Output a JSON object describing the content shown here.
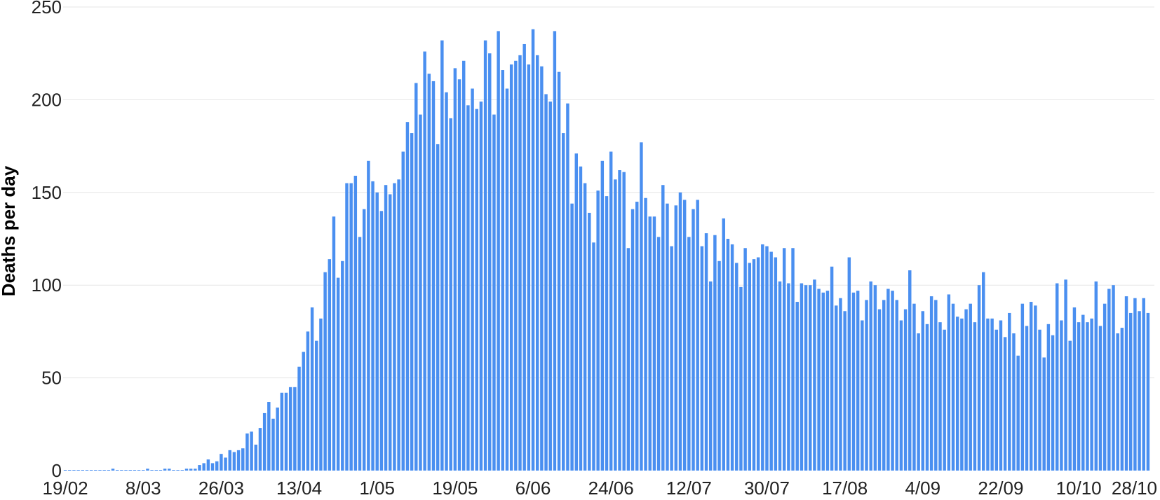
{
  "chart_data": {
    "type": "bar",
    "title": "",
    "xlabel": "",
    "ylabel": "Deaths per day",
    "ylim": [
      0,
      250
    ],
    "yticks": [
      "0",
      "50",
      "100",
      "150",
      "200",
      "250"
    ],
    "xticks": [
      "19/02",
      "8/03",
      "26/03",
      "13/04",
      "1/05",
      "19/05",
      "6/06",
      "24/06",
      "12/07",
      "30/07",
      "17/08",
      "4/09",
      "22/09",
      "10/10",
      "28/10"
    ],
    "first_date": "19/02",
    "bar_color": "#4a8ff0",
    "grid": true,
    "values": [
      0,
      0,
      0,
      0,
      0,
      0,
      0,
      0,
      0,
      0,
      0,
      1,
      0,
      0,
      0,
      0,
      0,
      0,
      0,
      1,
      0,
      0,
      0,
      1,
      1,
      0,
      0,
      0,
      1,
      1,
      1,
      3,
      4,
      6,
      4,
      5,
      9,
      7,
      11,
      10,
      11,
      12,
      20,
      21,
      14,
      23,
      31,
      37,
      28,
      34,
      42,
      42,
      45,
      45,
      56,
      64,
      75,
      88,
      70,
      82,
      107,
      114,
      137,
      104,
      113,
      155,
      155,
      159,
      126,
      141,
      167,
      156,
      150,
      140,
      154,
      149,
      155,
      157,
      172,
      188,
      182,
      209,
      192,
      226,
      214,
      210,
      176,
      232,
      204,
      190,
      217,
      211,
      221,
      197,
      206,
      195,
      199,
      232,
      225,
      192,
      237,
      216,
      206,
      219,
      221,
      224,
      230,
      219,
      238,
      224,
      218,
      203,
      199,
      237,
      215,
      182,
      198,
      144,
      171,
      164,
      155,
      139,
      123,
      151,
      167,
      148,
      172,
      157,
      162,
      161,
      120,
      141,
      145,
      177,
      147,
      137,
      137,
      126,
      154,
      144,
      121,
      143,
      150,
      146,
      126,
      141,
      146,
      121,
      128,
      102,
      127,
      113,
      136,
      125,
      122,
      112,
      99,
      120,
      112,
      114,
      115,
      122,
      121,
      118,
      115,
      102,
      120,
      101,
      120,
      91,
      101,
      100,
      100,
      103,
      98,
      96,
      97,
      110,
      89,
      93,
      86,
      115,
      96,
      97,
      81,
      92,
      102,
      100,
      87,
      92,
      98,
      97,
      92,
      81,
      87,
      108,
      90,
      74,
      86,
      79,
      94,
      92,
      80,
      76,
      95,
      90,
      83,
      82,
      87,
      90,
      80,
      100,
      107,
      82,
      82,
      76,
      81,
      72,
      85,
      74,
      62,
      90,
      78,
      91,
      89,
      76,
      61,
      79,
      73,
      101,
      81,
      103,
      70,
      88,
      80,
      84,
      80,
      82,
      102,
      78,
      90,
      98,
      100,
      74,
      77,
      94,
      85,
      93,
      86,
      93,
      85
    ]
  }
}
